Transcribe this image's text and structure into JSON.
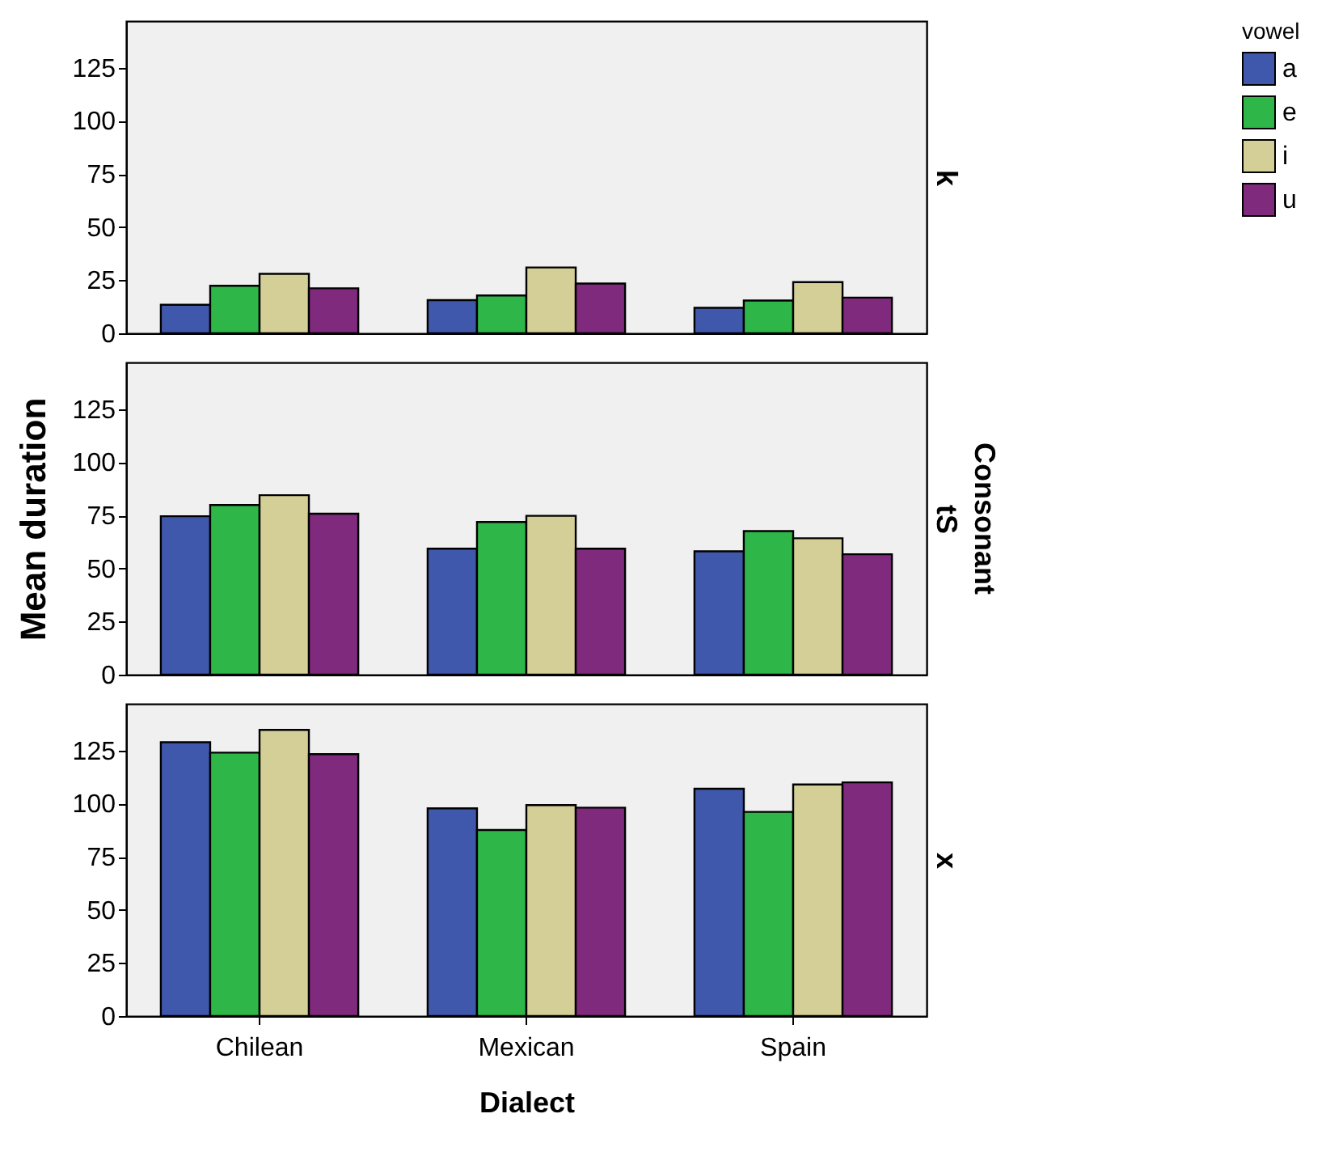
{
  "chart_data": [
    {
      "type": "bar",
      "title": "k",
      "categories": [
        null,
        null,
        null
      ],
      "ylim": [
        0,
        147
      ],
      "yticks": [
        0,
        25,
        50,
        75,
        100,
        125
      ],
      "tick_labels": "y",
      "grid": false,
      "legend": "top right",
      "legend_title": "vowel",
      "series": [
        {
          "name": "a",
          "color": "#3f58ab",
          "values": [
            13.4,
            15.6,
            12
          ]
        },
        {
          "name": "e",
          "color": "#2eb748",
          "values": [
            22.4,
            17.8,
            15.4
          ]
        },
        {
          "name": "i",
          "color": "#d4cf97",
          "values": [
            28,
            31,
            24.1
          ]
        },
        {
          "name": "u",
          "color": "#7f2a7c",
          "values": [
            21.2,
            23.4,
            16.8
          ]
        }
      ]
    },
    {
      "type": "bar",
      "title": "tS",
      "ylabel": "Mean duration",
      "y2label": "Consonant",
      "categories": [
        null,
        null,
        null
      ],
      "ylim": [
        0,
        147
      ],
      "yticks": [
        0,
        25,
        50,
        75,
        100,
        125
      ],
      "tick_labels": "y",
      "grid": false,
      "series": [
        {
          "name": "a",
          "color": "#3f58ab",
          "values": [
            74.6,
            59.3,
            58.1
          ]
        },
        {
          "name": "e",
          "color": "#2eb748",
          "values": [
            79.9,
            71.9,
            67.6
          ]
        },
        {
          "name": "i",
          "color": "#d4cf97",
          "values": [
            84.5,
            74.8,
            64.2
          ]
        },
        {
          "name": "u",
          "color": "#7f2a7c",
          "values": [
            75.8,
            59.3,
            56.7
          ]
        }
      ]
    },
    {
      "type": "bar",
      "title": "x",
      "xlabel": "Dialect",
      "categories": [
        "Chilean",
        "Mexican",
        "Spain"
      ],
      "ylim": [
        0,
        147
      ],
      "yticks": [
        0,
        25,
        50,
        75,
        100,
        125
      ],
      "grid": false,
      "series": [
        {
          "name": "a",
          "color": "#3f58ab",
          "values": [
            128.9,
            97.8,
            107
          ]
        },
        {
          "name": "e",
          "color": "#2eb748",
          "values": [
            124,
            87.6,
            96.1
          ]
        },
        {
          "name": "i",
          "color": "#d4cf97",
          "values": [
            134.7,
            99.3,
            109
          ]
        },
        {
          "name": "u",
          "color": "#7f2a7c",
          "values": [
            123.3,
            98.1,
            110
          ]
        }
      ]
    }
  ]
}
